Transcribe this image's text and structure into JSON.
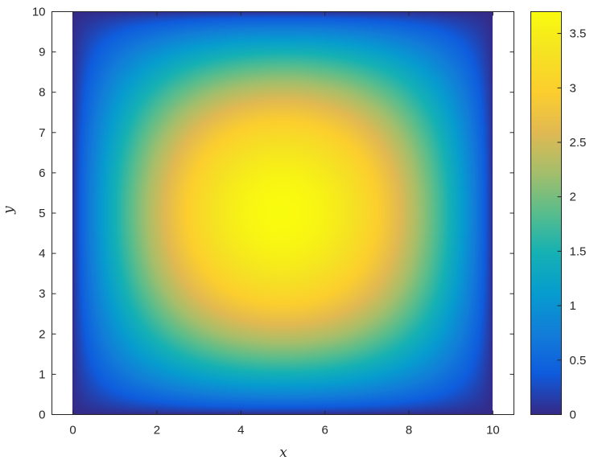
{
  "chart_data": {
    "type": "heatmap",
    "colormap": "parula",
    "field": "smooth bump peaking at the center of the domain, falling to 0 at the boundary",
    "peak": {
      "x": 5,
      "y": 5,
      "value": 3.7
    },
    "xlabel": "x",
    "ylabel": "y",
    "xlim": [
      -0.5,
      10.5
    ],
    "ylim": [
      0,
      10
    ],
    "data_xrange": [
      0,
      10
    ],
    "data_yrange": [
      0,
      10
    ],
    "xticks": [
      0,
      2,
      4,
      6,
      8,
      10
    ],
    "yticks": [
      0,
      1,
      2,
      3,
      4,
      5,
      6,
      7,
      8,
      9,
      10
    ],
    "colorbar": {
      "limits": [
        0,
        3.7
      ],
      "ticks": [
        0,
        0.5,
        1,
        1.5,
        2,
        2.5,
        3,
        3.5
      ]
    }
  }
}
